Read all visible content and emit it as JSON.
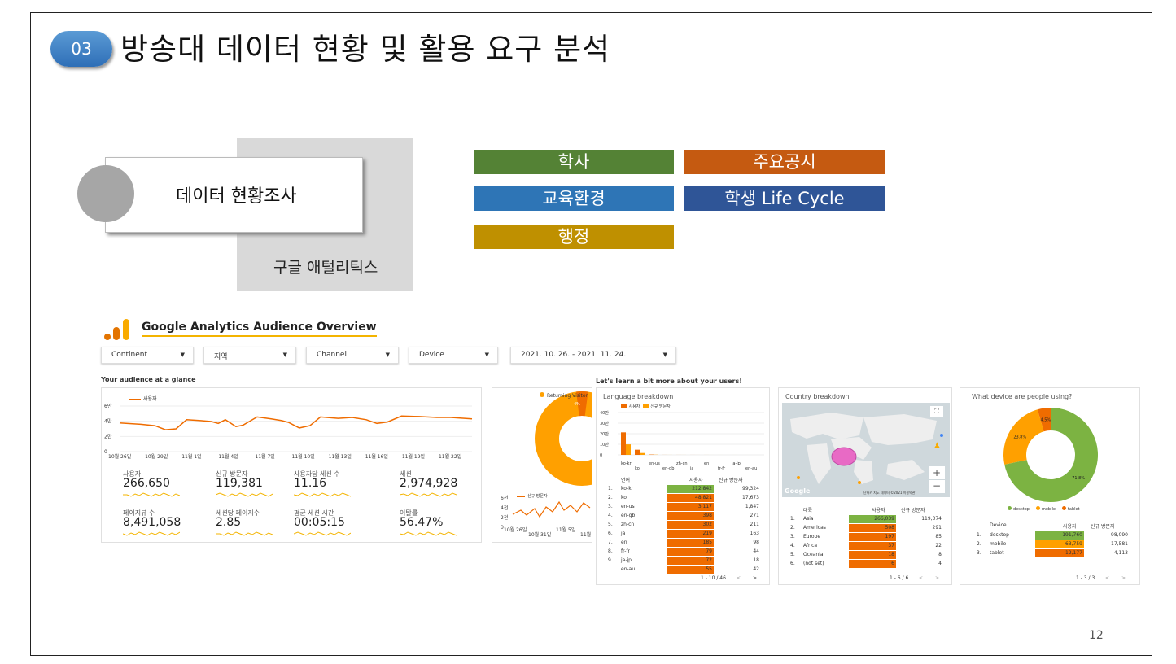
{
  "slide": {
    "badge": "03",
    "title": "방송대 데이터 현황 및 활용 요구 분석",
    "card_label": "데이터 현황조사",
    "ga_label": "구글 애털리틱스",
    "page_number": "12",
    "tags": [
      {
        "label": "학사",
        "color": "#548235"
      },
      {
        "label": "주요공시",
        "color": "#c55a11"
      },
      {
        "label": "교육환경",
        "color": "#2e75b6"
      },
      {
        "label": "학생 Life Cycle",
        "color": "#2f5597"
      },
      {
        "label": "행정",
        "color": "#bf9000"
      }
    ]
  },
  "ga": {
    "title": "Google Analytics Audience Overview",
    "filters": [
      "Continent",
      "지역",
      "Channel",
      "Device",
      "2021. 10. 26. - 2021. 11. 24."
    ],
    "glance_title": "Your audience at a glance",
    "learn_title": "Let's learn a bit more about your users!",
    "users_legend": "사용자",
    "y_ticks": [
      "6만",
      "4만",
      "2만",
      "0"
    ],
    "x_ticks": [
      "10월 26일",
      "10월 29일",
      "11월 1일",
      "11월 4일",
      "11월 7일",
      "11월 10일",
      "11월 13일",
      "11월 16일",
      "11월 19일",
      "11월 22일"
    ],
    "metrics": [
      {
        "label": "사용자",
        "value": "266,650"
      },
      {
        "label": "신규 방문자",
        "value": "119,381"
      },
      {
        "label": "사용자당 세션 수",
        "value": "11.16"
      },
      {
        "label": "세션",
        "value": "2,974,928"
      },
      {
        "label": "페이지뷰 수",
        "value": "8,491,058"
      },
      {
        "label": "세션당 페이지수",
        "value": "2.85"
      },
      {
        "label": "평균 세션 시간",
        "value": "00:05:15"
      },
      {
        "label": "이탈률",
        "value": "56.47%"
      }
    ],
    "returning": {
      "legend": "Returning Visitor",
      "pct": "4%",
      "new_legend": "신규 방문자",
      "y_ticks": [
        "6천",
        "4천",
        "2천",
        "0"
      ],
      "x_ticks": [
        "10월 26일",
        "10월 31일",
        "11월 5일",
        "11월"
      ]
    },
    "language": {
      "title": "Language breakdown",
      "legend": [
        "사용자",
        "신규 방문자"
      ],
      "y_ticks": [
        "40만",
        "30만",
        "20만",
        "10만",
        "0"
      ],
      "x_ticks_top": [
        "ko-kr",
        "en-us",
        "zh-cn",
        "en",
        "ja-jp"
      ],
      "x_ticks_bottom": [
        "ko",
        "en-gb",
        "ja",
        "fr-fr",
        "en-au"
      ],
      "headers": [
        "언어",
        "사용자",
        "신규 방문자"
      ],
      "rows": [
        {
          "n": "1.",
          "name": "ko-kr",
          "users": "212,842",
          "new": "99,324",
          "share": 1.0
        },
        {
          "n": "2.",
          "name": "ko",
          "users": "48,821",
          "new": "17,673",
          "share": 0.23
        },
        {
          "n": "3.",
          "name": "en-us",
          "users": "3,117",
          "new": "1,847",
          "share": 0.015
        },
        {
          "n": "4.",
          "name": "en-gb",
          "users": "398",
          "new": "271",
          "share": 0.002
        },
        {
          "n": "5.",
          "name": "zh-cn",
          "users": "302",
          "new": "211",
          "share": 0.001
        },
        {
          "n": "6.",
          "name": "ja",
          "users": "219",
          "new": "163",
          "share": 0.001
        },
        {
          "n": "7.",
          "name": "en",
          "users": "185",
          "new": "98",
          "share": 0.001
        },
        {
          "n": "8.",
          "name": "fr-fr",
          "users": "79",
          "new": "44",
          "share": 0.0
        },
        {
          "n": "9.",
          "name": "ja-jp",
          "users": "72",
          "new": "18",
          "share": 0.0
        },
        {
          "n": "...",
          "name": "en-au",
          "users": "55",
          "new": "42",
          "share": 0.0
        }
      ],
      "pager": "1 - 10 / 46"
    },
    "country": {
      "title": "Country breakdown",
      "map_credit": "Google",
      "map_footer": "단축키  지도 데이터 ©2021  이용약관",
      "headers": [
        "대륙",
        "사용자",
        "신규 방문자"
      ],
      "rows": [
        {
          "n": "1.",
          "name": "Asia",
          "users": "266,039",
          "new": "119,374",
          "share": 1.0
        },
        {
          "n": "2.",
          "name": "Americas",
          "users": "508",
          "new": "291",
          "share": 0.002
        },
        {
          "n": "3.",
          "name": "Europe",
          "users": "197",
          "new": "85",
          "share": 0.001
        },
        {
          "n": "4.",
          "name": "Africa",
          "users": "37",
          "new": "22",
          "share": 0.0
        },
        {
          "n": "5.",
          "name": "Oceania",
          "users": "18",
          "new": "8",
          "share": 0.0
        },
        {
          "n": "6.",
          "name": "(not set)",
          "users": "6",
          "new": "4",
          "share": 0.0
        }
      ],
      "pager": "1 - 6 / 6"
    },
    "device": {
      "title": "What device are people using?",
      "slices": [
        {
          "name": "desktop",
          "pct": "71.8%",
          "value": 71.8,
          "color": "#7cb342"
        },
        {
          "name": "mobile",
          "pct": "23.8%",
          "value": 23.8,
          "color": "#ffa000"
        },
        {
          "name": "tablet",
          "pct": "4.5%",
          "value": 4.5,
          "color": "#ef6c00"
        }
      ],
      "headers": [
        "Device",
        "사용자",
        "신규 방문자"
      ],
      "rows": [
        {
          "n": "1.",
          "name": "desktop",
          "users": "191,760",
          "new": "98,090"
        },
        {
          "n": "2.",
          "name": "mobile",
          "users": "63,759",
          "new": "17,581"
        },
        {
          "n": "3.",
          "name": "tablet",
          "users": "12,177",
          "new": "4,113"
        }
      ],
      "pager": "1 - 3 / 3"
    }
  }
}
